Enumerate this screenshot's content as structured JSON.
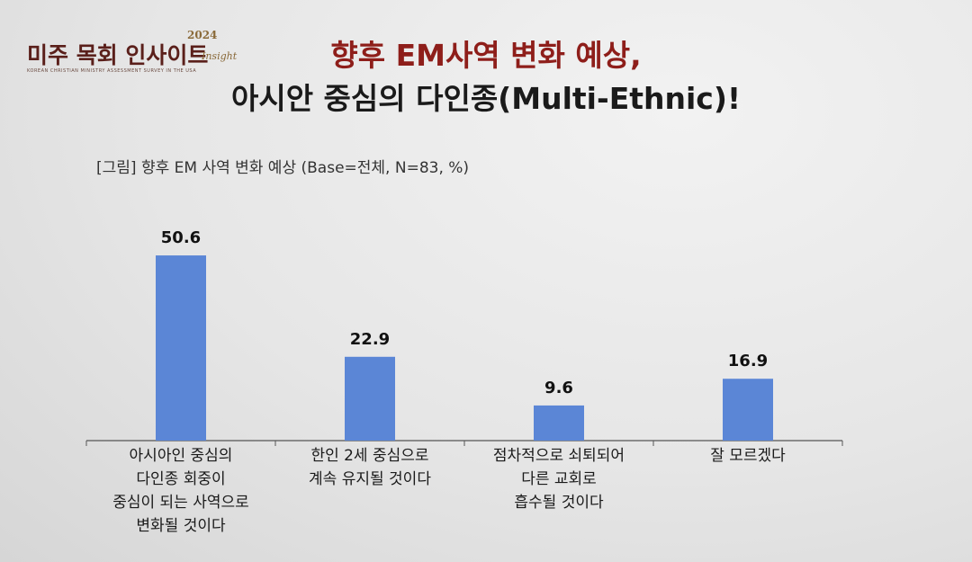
{
  "logo": {
    "main": "미주 목회 인사이트",
    "year": "2024",
    "script": "Insight",
    "subtitle": "KOREAN CHRISTIAN MINISTRY ASSESSMENT SURVEY IN THE USA"
  },
  "title": {
    "line1": "향후 EM사역 변화 예상,",
    "line2": "아시안 중심의 다인종(Multi-Ethnic)!"
  },
  "caption": "[그림] 향후 EM 사역 변화 예상 (Base=전체, N=83, %)",
  "colors": {
    "bar": "#5b86d6",
    "title_accent": "#8e1e1a",
    "axis": "#555555"
  },
  "chart_data": {
    "type": "bar",
    "title": "[그림] 향후 EM 사역 변화 예상 (Base=전체, N=83, %)",
    "categories": [
      "아시아인 중심의\n다인종 회중이\n중심이 되는 사역으로\n변화될 것이다",
      "한인 2세 중심으로\n계속 유지될 것이다",
      "점차적으로 쇠퇴되어\n다른 교회로\n흡수될 것이다",
      "잘 모르겠다"
    ],
    "values": [
      50.6,
      22.9,
      9.6,
      16.9
    ],
    "data_labels": [
      "50.6",
      "22.9",
      "9.6",
      "16.9"
    ],
    "ylim": [
      0,
      60
    ],
    "grid": false,
    "legend": "none"
  }
}
